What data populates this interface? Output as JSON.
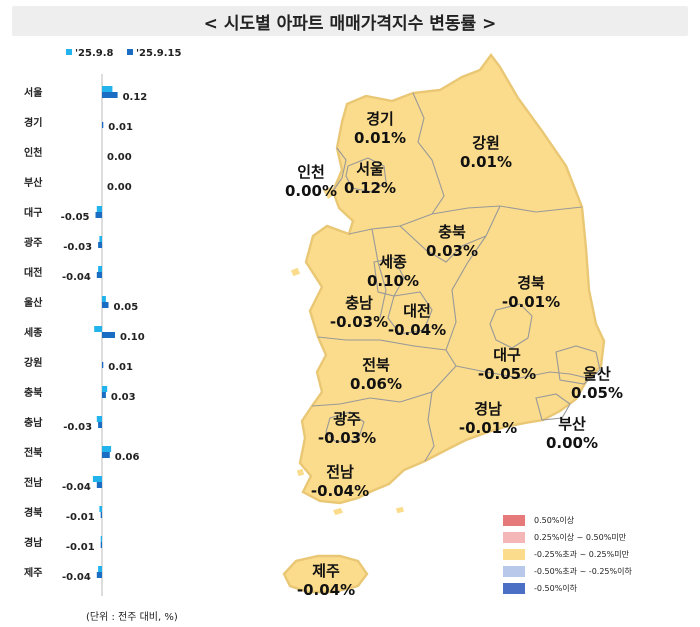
{
  "title": "< 시도별 아파트 매매가격지수 변동률 >",
  "unit_note": "(단위 : 전주 대비, %)",
  "colors": {
    "series1": "#22b3ec",
    "series2": "#1a6dc3",
    "map_fill": "#fbdc8c"
  },
  "chart_data": {
    "type": "bar",
    "orientation": "horizontal",
    "categories": [
      "서울",
      "경기",
      "인천",
      "부산",
      "대구",
      "광주",
      "대전",
      "울산",
      "세종",
      "강원",
      "충북",
      "충남",
      "전북",
      "전남",
      "경북",
      "경남",
      "제주"
    ],
    "series": [
      {
        "name": "'25.9.8",
        "values": [
          0.08,
          0.0,
          0.0,
          0.0,
          -0.04,
          -0.02,
          -0.03,
          0.03,
          -0.06,
          0.0,
          0.04,
          -0.04,
          0.07,
          -0.07,
          -0.02,
          -0.01,
          -0.03
        ]
      },
      {
        "name": "'25.9.15",
        "values": [
          0.12,
          0.01,
          0.0,
          0.0,
          -0.05,
          -0.03,
          -0.04,
          0.05,
          0.1,
          0.01,
          0.03,
          -0.03,
          0.06,
          -0.04,
          -0.01,
          -0.01,
          -0.04
        ]
      }
    ],
    "value_labels": [
      "0.12",
      "0.01",
      "0.00",
      "0.00",
      "-0.05",
      "-0.03",
      "-0.04",
      "0.05",
      "0.10",
      "0.01",
      "0.03",
      "-0.03",
      "0.06",
      "-0.04",
      "-0.01",
      "-0.01",
      "-0.04"
    ],
    "xlabel": "",
    "ylabel": ""
  },
  "map": {
    "regions": [
      {
        "name": "경기",
        "value": "0.01%"
      },
      {
        "name": "강원",
        "value": "0.01%"
      },
      {
        "name": "인천",
        "value": "0.00%"
      },
      {
        "name": "서울",
        "value": "0.12%"
      },
      {
        "name": "충북",
        "value": "0.03%"
      },
      {
        "name": "세종",
        "value": "0.10%"
      },
      {
        "name": "경북",
        "value": "-0.01%"
      },
      {
        "name": "충남",
        "value": "-0.03%"
      },
      {
        "name": "대전",
        "value": "-0.04%"
      },
      {
        "name": "전북",
        "value": "0.06%"
      },
      {
        "name": "대구",
        "value": "-0.05%"
      },
      {
        "name": "울산",
        "value": "0.05%"
      },
      {
        "name": "광주",
        "value": "-0.03%"
      },
      {
        "name": "경남",
        "value": "-0.01%"
      },
      {
        "name": "부산",
        "value": "0.00%"
      },
      {
        "name": "전남",
        "value": "-0.04%"
      },
      {
        "name": "제주",
        "value": "-0.04%"
      }
    ],
    "legend": [
      {
        "label": "0.50%이상",
        "color": "#e67a7a"
      },
      {
        "label": "0.25%이상 ~ 0.50%미만",
        "color": "#f4b6b6"
      },
      {
        "label": "-0.25%초과 ~ 0.25%미만",
        "color": "#fbdc8c"
      },
      {
        "label": "-0.50%초과 ~ -0.25%이하",
        "color": "#b7c8ea"
      },
      {
        "label": "-0.50%이하",
        "color": "#4a6fc4"
      }
    ]
  }
}
